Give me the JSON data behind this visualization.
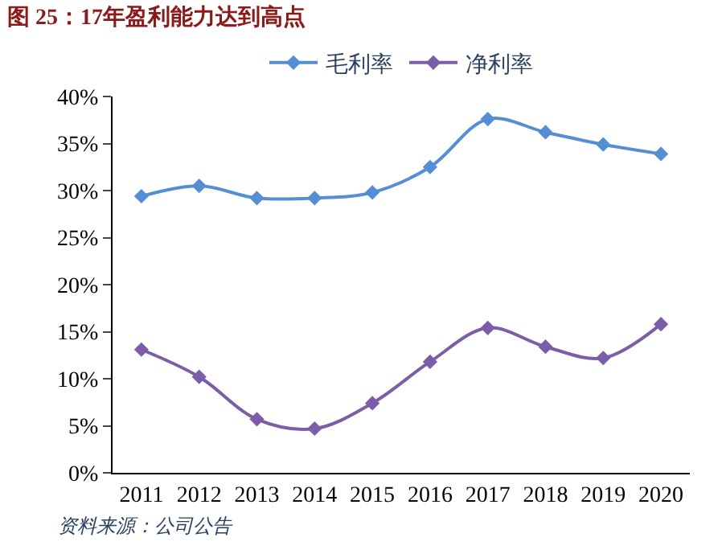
{
  "chart_data": {
    "type": "line",
    "title": "图 25：17年盈利能力达到高点",
    "categories": [
      "2011",
      "2012",
      "2013",
      "2014",
      "2015",
      "2016",
      "2017",
      "2018",
      "2019",
      "2020"
    ],
    "series": [
      {
        "name": "毛利率",
        "color": "#558ed5",
        "values": [
          29.4,
          30.5,
          29.2,
          29.2,
          29.8,
          32.5,
          37.6,
          36.2,
          34.9,
          33.9
        ]
      },
      {
        "name": "净利率",
        "color": "#7b5ea7",
        "values": [
          13.1,
          10.2,
          5.7,
          4.7,
          7.4,
          11.8,
          15.4,
          13.4,
          12.2,
          15.8
        ]
      }
    ],
    "ylim": [
      0,
      40
    ],
    "yticks": [
      {
        "value": 0,
        "label": "0%"
      },
      {
        "value": 5,
        "label": "5%"
      },
      {
        "value": 10,
        "label": "10%"
      },
      {
        "value": 15,
        "label": "15%"
      },
      {
        "value": 20,
        "label": "20%"
      },
      {
        "value": 25,
        "label": "25%"
      },
      {
        "value": 30,
        "label": "30%"
      },
      {
        "value": 35,
        "label": "35%"
      },
      {
        "value": 40,
        "label": "40%"
      }
    ],
    "legend": "top",
    "marker": "diamond",
    "line_style": "solid",
    "annotations": [
      "资料来源：公司公告"
    ]
  }
}
